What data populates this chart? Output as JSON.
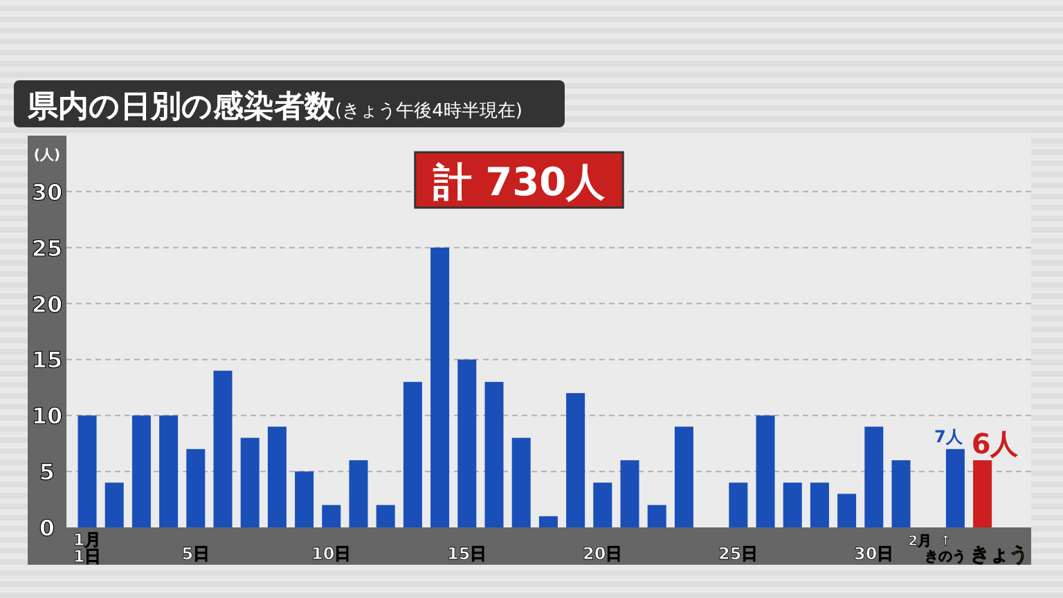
{
  "chart_data": {
    "type": "bar",
    "title": "県内の日別の感染者数",
    "subtitle": "(きょう午後4時半現在)",
    "ylabel": "(人)",
    "annotations": [
      "計 730人"
    ],
    "categories": [
      "1月\n1日",
      null,
      null,
      null,
      "5日",
      null,
      null,
      null,
      null,
      "10日",
      null,
      null,
      null,
      null,
      "15日",
      null,
      null,
      null,
      null,
      "20日",
      null,
      null,
      null,
      null,
      "25日",
      null,
      null,
      null,
      null,
      "30日",
      null,
      "2月",
      "↑\nきのう",
      "きょう"
    ],
    "values": [
      10,
      4,
      10,
      10,
      7,
      14,
      8,
      9,
      5,
      2,
      6,
      2,
      13,
      25,
      15,
      13,
      8,
      1,
      12,
      4,
      6,
      2,
      9,
      0,
      4,
      10,
      4,
      4,
      3,
      9,
      6,
      0,
      7,
      6
    ],
    "colors": [
      "#1a4fb8",
      "#1a4fb8",
      "#1a4fb8",
      "#1a4fb8",
      "#1a4fb8",
      "#1a4fb8",
      "#1a4fb8",
      "#1a4fb8",
      "#1a4fb8",
      "#1a4fb8",
      "#1a4fb8",
      "#1a4fb8",
      "#1a4fb8",
      "#1a4fb8",
      "#1a4fb8",
      "#1a4fb8",
      "#1a4fb8",
      "#1a4fb8",
      "#1a4fb8",
      "#1a4fb8",
      "#1a4fb8",
      "#1a4fb8",
      "#1a4fb8",
      "#1a4fb8",
      "#1a4fb8",
      "#1a4fb8",
      "#1a4fb8",
      "#1a4fb8",
      "#1a4fb8",
      "#1a4fb8",
      "#1a4fb8",
      "#1a4fb8",
      "#1a4fb8",
      "#cc1f1f"
    ],
    "value_labels": [
      null,
      null,
      null,
      null,
      null,
      null,
      null,
      null,
      null,
      null,
      null,
      null,
      null,
      null,
      null,
      null,
      null,
      null,
      null,
      null,
      null,
      null,
      null,
      null,
      null,
      null,
      null,
      null,
      null,
      null,
      null,
      null,
      "7人",
      "6人"
    ],
    "ylim": [
      0,
      35
    ],
    "yticks": [
      0,
      5,
      10,
      15,
      20,
      25,
      30
    ],
    "grid": "y",
    "legend": false
  }
}
